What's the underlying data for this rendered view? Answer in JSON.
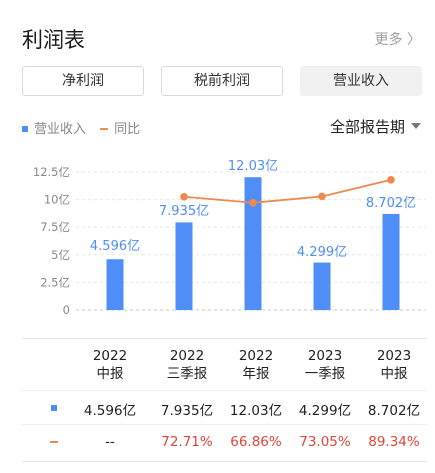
{
  "header": {
    "title": "利润表",
    "more": "更多 〉"
  },
  "tabs": [
    {
      "label": "净利润",
      "active": false
    },
    {
      "label": "税前利润",
      "active": false
    },
    {
      "label": "营业收入",
      "active": true
    }
  ],
  "legend": {
    "bar": "营业收入",
    "line": "同比"
  },
  "period_selector": "全部报告期",
  "colors": {
    "bar": "#4f8ef7",
    "line": "#ef8a4c",
    "negative_red": "#e0453a"
  },
  "chart_data": {
    "type": "bar",
    "categories": [
      "2022中报",
      "2022三季报",
      "2022年报",
      "2023一季报",
      "2023中报"
    ],
    "series": [
      {
        "name": "营业收入",
        "values": [
          4.596,
          7.935,
          12.03,
          4.299,
          8.702
        ],
        "labels": [
          "4.596亿",
          "7.935亿",
          "12.03亿",
          "4.299亿",
          "8.702亿"
        ]
      },
      {
        "name": "同比",
        "type": "line",
        "values": [
          null,
          72.71,
          66.86,
          73.05,
          89.34
        ]
      }
    ],
    "yticks": [
      "0",
      "2.5亿",
      "5亿",
      "7.5亿",
      "10亿",
      "12.5亿"
    ],
    "ylim": [
      0,
      12.5
    ],
    "grid": true
  },
  "table": {
    "headers": [
      {
        "year": "2022",
        "period": "中报"
      },
      {
        "year": "2022",
        "period": "三季报"
      },
      {
        "year": "2022",
        "period": "年报"
      },
      {
        "year": "2023",
        "period": "一季报"
      },
      {
        "year": "2023",
        "period": "中报"
      }
    ],
    "revenue": [
      "4.596亿",
      "7.935亿",
      "12.03亿",
      "4.299亿",
      "8.702亿"
    ],
    "yoy": [
      "--",
      "72.71%",
      "66.86%",
      "73.05%",
      "89.34%"
    ]
  }
}
